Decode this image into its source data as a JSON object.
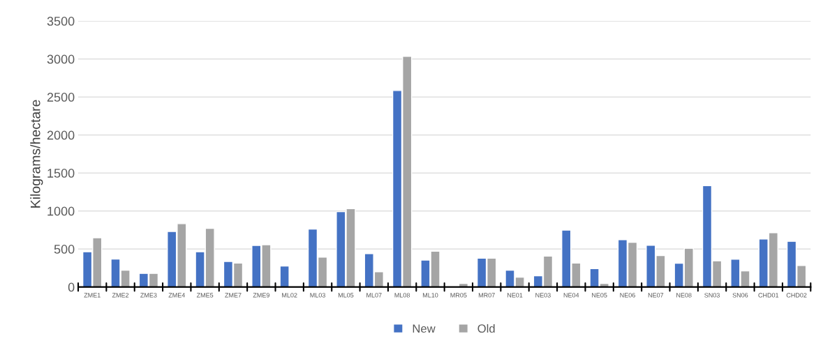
{
  "chart_data": {
    "type": "bar",
    "ylabel": "Kilograms/hectare",
    "categories": [
      "ZME1",
      "ZME2",
      "ZME3",
      "ZME4",
      "ZME5",
      "ZME7",
      "ZME9",
      "ML02",
      "ML03",
      "ML05",
      "ML07",
      "ML08",
      "ML10",
      "MR05",
      "MR07",
      "NE01",
      "NE03",
      "NE04",
      "NE05",
      "NE06",
      "NE07",
      "NE08",
      "SN03",
      "SN06",
      "CHD01",
      "CHD02"
    ],
    "series": [
      {
        "name": "New",
        "color": "#4472c4",
        "values": [
          463,
          367,
          179,
          731,
          463,
          336,
          546,
          275,
          762,
          991,
          438,
          2585,
          355,
          null,
          380,
          222,
          148,
          748,
          242,
          623,
          549,
          313,
          1334,
          365,
          632,
          601
        ]
      },
      {
        "name": "Old",
        "color": "#a5a5a5",
        "values": [
          648,
          222,
          179,
          833,
          772,
          315,
          556,
          null,
          392,
          1031,
          201,
          3034,
          472,
          46,
          380,
          130,
          407,
          314,
          46,
          589,
          414,
          509,
          344,
          212,
          715,
          282
        ]
      }
    ],
    "ylim": [
      0,
      3500
    ],
    "yticks": [
      0,
      500,
      1000,
      1500,
      2000,
      2500,
      3000,
      3500
    ],
    "grid": "y",
    "legend": "bottom"
  }
}
